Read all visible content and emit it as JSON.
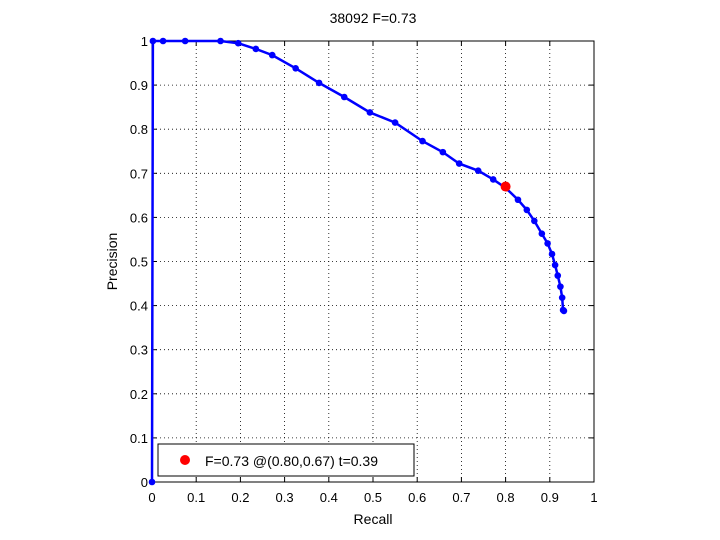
{
  "chart_data": {
    "type": "line",
    "title": "38092 F=0.73",
    "xlabel": "Recall",
    "ylabel": "Precision",
    "xlim": [
      0,
      1
    ],
    "ylim": [
      0,
      1
    ],
    "xticks": [
      "0",
      "0.1",
      "0.2",
      "0.3",
      "0.4",
      "0.5",
      "0.6",
      "0.7",
      "0.8",
      "0.9",
      "1"
    ],
    "yticks": [
      "0",
      "0.1",
      "0.2",
      "0.3",
      "0.4",
      "0.5",
      "0.6",
      "0.7",
      "0.8",
      "0.9",
      "1"
    ],
    "grid": true,
    "legend_position": "bottom-left",
    "series": [
      {
        "color": "#0000ff",
        "marker": "dot",
        "x": [
          0.0,
          0.002,
          0.025,
          0.075,
          0.155,
          0.195,
          0.235,
          0.272,
          0.325,
          0.378,
          0.435,
          0.493,
          0.55,
          0.612,
          0.658,
          0.695,
          0.738,
          0.772,
          0.8,
          0.828,
          0.848,
          0.865,
          0.882,
          0.895,
          0.905,
          0.912,
          0.918,
          0.924,
          0.928,
          0.93,
          0.932
        ],
        "y": [
          0.0,
          1.0,
          1.0,
          1.0,
          1.0,
          0.995,
          0.982,
          0.968,
          0.938,
          0.905,
          0.873,
          0.838,
          0.815,
          0.773,
          0.748,
          0.722,
          0.706,
          0.686,
          0.667,
          0.64,
          0.617,
          0.592,
          0.563,
          0.541,
          0.517,
          0.492,
          0.468,
          0.443,
          0.418,
          0.39,
          0.388
        ]
      }
    ],
    "best_point": {
      "x": 0.8,
      "y": 0.67,
      "color": "#ff0000"
    },
    "legend": [
      {
        "label": "F=0.73 @(0.80,0.67) t=0.39",
        "color": "#ff0000"
      }
    ]
  }
}
